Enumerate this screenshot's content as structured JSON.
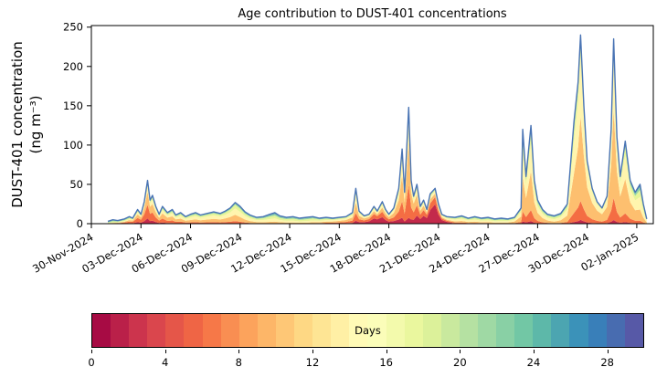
{
  "figure": {
    "title": "Age contribution to DUST-401 concentrations",
    "ylabel_line1": "DUST-401 concentration",
    "ylabel_line2": "(ng m⁻³)"
  },
  "chart_data": {
    "type": "area",
    "stacked": true,
    "title": "Age contribution to DUST-401 concentrations",
    "xlabel": "",
    "ylabel": "DUST-401 concentration (ng m⁻³)",
    "x_unit": "days since 30-Nov-2024",
    "xlim": [
      0,
      34
    ],
    "ylim": [
      0,
      252
    ],
    "grid": false,
    "line_color": "#4a74b4",
    "y_ticks": [
      0,
      50,
      100,
      150,
      200,
      250
    ],
    "x_ticks": [
      {
        "label": "30-Nov-2024",
        "day": 0
      },
      {
        "label": "03-Dec-2024",
        "day": 3
      },
      {
        "label": "06-Dec-2024",
        "day": 6
      },
      {
        "label": "09-Dec-2024",
        "day": 9
      },
      {
        "label": "12-Dec-2024",
        "day": 12
      },
      {
        "label": "15-Dec-2024",
        "day": 15
      },
      {
        "label": "18-Dec-2024",
        "day": 18
      },
      {
        "label": "21-Dec-2024",
        "day": 21
      },
      {
        "label": "24-Dec-2024",
        "day": 24
      },
      {
        "label": "27-Dec-2024",
        "day": 27
      },
      {
        "label": "30-Dec-2024",
        "day": 30
      },
      {
        "label": "02-Jan-2025",
        "day": 33
      }
    ],
    "colormap": [
      "#9e0142",
      "#d53e4f",
      "#f46d43",
      "#fdae61",
      "#fee08b",
      "#ffffbf",
      "#e6f598",
      "#abdda4",
      "#66c2a5",
      "#3288bd",
      "#5e4fa2"
    ],
    "age_bands": [
      {
        "label": "0-4 days",
        "range": [
          0,
          4
        ]
      },
      {
        "label": "4-8 days",
        "range": [
          4,
          8
        ]
      },
      {
        "label": "8-12 days",
        "range": [
          8,
          12
        ]
      },
      {
        "label": "12-16 days",
        "range": [
          12,
          16
        ]
      },
      {
        "label": "16-20 days",
        "range": [
          16,
          20
        ]
      },
      {
        "label": "20-24 days",
        "range": [
          20,
          24
        ]
      },
      {
        "label": "24-29 days",
        "range": [
          24,
          29
        ]
      }
    ],
    "x": [
      1.0,
      1.3,
      1.6,
      2.0,
      2.3,
      2.5,
      2.8,
      3.0,
      3.2,
      3.4,
      3.55,
      3.7,
      3.9,
      4.1,
      4.3,
      4.6,
      4.9,
      5.1,
      5.4,
      5.7,
      6.0,
      6.3,
      6.6,
      7.0,
      7.4,
      7.8,
      8.1,
      8.4,
      8.7,
      9.0,
      9.3,
      9.6,
      10.0,
      10.4,
      10.8,
      11.1,
      11.4,
      11.8,
      12.2,
      12.6,
      13.0,
      13.4,
      13.8,
      14.2,
      14.6,
      15.0,
      15.4,
      15.8,
      16.0,
      16.2,
      16.5,
      16.8,
      17.1,
      17.3,
      17.6,
      17.8,
      18.0,
      18.3,
      18.6,
      18.8,
      18.95,
      19.2,
      19.35,
      19.5,
      19.7,
      19.9,
      20.1,
      20.3,
      20.5,
      20.8,
      21.0,
      21.2,
      21.5,
      22.0,
      22.4,
      22.8,
      23.2,
      23.6,
      24.0,
      24.4,
      24.8,
      25.2,
      25.6,
      26.0,
      26.1,
      26.3,
      26.6,
      26.8,
      27.0,
      27.3,
      27.6,
      28.0,
      28.4,
      28.8,
      29.2,
      29.45,
      29.6,
      29.8,
      30.0,
      30.3,
      30.6,
      30.9,
      31.2,
      31.45,
      31.6,
      31.8,
      32.0,
      32.3,
      32.6,
      32.9,
      33.2,
      33.4,
      33.6
    ],
    "total": [
      3,
      5,
      4,
      6,
      9,
      7,
      18,
      12,
      28,
      55,
      30,
      36,
      22,
      12,
      22,
      14,
      18,
      11,
      14,
      9,
      12,
      14,
      11,
      13,
      15,
      13,
      16,
      20,
      27,
      22,
      15,
      11,
      8,
      9,
      12,
      14,
      10,
      8,
      9,
      7,
      8,
      9,
      7,
      8,
      7,
      8,
      9,
      14,
      45,
      16,
      10,
      12,
      22,
      16,
      28,
      18,
      12,
      20,
      45,
      95,
      40,
      148,
      55,
      35,
      50,
      22,
      30,
      18,
      38,
      45,
      25,
      12,
      9,
      8,
      10,
      7,
      9,
      7,
      8,
      6,
      7,
      6,
      8,
      20,
      120,
      60,
      125,
      55,
      30,
      18,
      12,
      10,
      13,
      25,
      130,
      180,
      240,
      150,
      80,
      45,
      28,
      20,
      35,
      120,
      235,
      110,
      60,
      105,
      55,
      40,
      50,
      25,
      6
    ],
    "fraction_keyframes": [
      {
        "x": 1.0,
        "f": [
          0.0,
          0.03,
          0.07,
          0.15,
          0.3,
          0.25,
          0.2
        ]
      },
      {
        "x": 2.8,
        "f": [
          0.1,
          0.3,
          0.25,
          0.15,
          0.1,
          0.06,
          0.04
        ]
      },
      {
        "x": 3.4,
        "f": [
          0.12,
          0.32,
          0.3,
          0.14,
          0.06,
          0.04,
          0.02
        ]
      },
      {
        "x": 4.6,
        "f": [
          0.05,
          0.2,
          0.3,
          0.2,
          0.12,
          0.08,
          0.05
        ]
      },
      {
        "x": 6.0,
        "f": [
          0.02,
          0.12,
          0.25,
          0.28,
          0.18,
          0.1,
          0.05
        ]
      },
      {
        "x": 8.7,
        "f": [
          0.02,
          0.1,
          0.3,
          0.3,
          0.17,
          0.07,
          0.04
        ]
      },
      {
        "x": 10.5,
        "f": [
          0.0,
          0.05,
          0.15,
          0.3,
          0.25,
          0.15,
          0.1
        ]
      },
      {
        "x": 13.0,
        "f": [
          0.0,
          0.03,
          0.12,
          0.25,
          0.3,
          0.18,
          0.12
        ]
      },
      {
        "x": 16.0,
        "f": [
          0.08,
          0.22,
          0.3,
          0.22,
          0.1,
          0.05,
          0.03
        ]
      },
      {
        "x": 17.3,
        "f": [
          0.35,
          0.25,
          0.15,
          0.12,
          0.07,
          0.04,
          0.02
        ]
      },
      {
        "x": 18.8,
        "f": [
          0.08,
          0.22,
          0.35,
          0.2,
          0.08,
          0.04,
          0.03
        ]
      },
      {
        "x": 19.2,
        "f": [
          0.05,
          0.28,
          0.38,
          0.18,
          0.06,
          0.03,
          0.02
        ]
      },
      {
        "x": 20.0,
        "f": [
          0.3,
          0.25,
          0.2,
          0.12,
          0.07,
          0.04,
          0.02
        ]
      },
      {
        "x": 20.8,
        "f": [
          0.55,
          0.2,
          0.1,
          0.07,
          0.04,
          0.02,
          0.02
        ]
      },
      {
        "x": 22.0,
        "f": [
          0.05,
          0.12,
          0.2,
          0.28,
          0.18,
          0.1,
          0.07
        ]
      },
      {
        "x": 25.0,
        "f": [
          0.0,
          0.04,
          0.14,
          0.28,
          0.26,
          0.16,
          0.12
        ]
      },
      {
        "x": 26.4,
        "f": [
          0.03,
          0.12,
          0.42,
          0.28,
          0.09,
          0.04,
          0.02
        ]
      },
      {
        "x": 28.0,
        "f": [
          0.0,
          0.06,
          0.2,
          0.3,
          0.24,
          0.12,
          0.08
        ]
      },
      {
        "x": 29.6,
        "f": [
          0.02,
          0.1,
          0.45,
          0.32,
          0.07,
          0.02,
          0.02
        ]
      },
      {
        "x": 31.6,
        "f": [
          0.02,
          0.12,
          0.48,
          0.27,
          0.07,
          0.02,
          0.02
        ]
      },
      {
        "x": 32.5,
        "f": [
          0.02,
          0.1,
          0.4,
          0.3,
          0.1,
          0.05,
          0.03
        ]
      },
      {
        "x": 33.6,
        "f": [
          0.0,
          0.05,
          0.22,
          0.33,
          0.22,
          0.11,
          0.07
        ]
      }
    ],
    "colorbar": {
      "label": "Days",
      "ticks": [
        0,
        4,
        8,
        12,
        16,
        20,
        24,
        28
      ],
      "max": 30,
      "bins": 30
    }
  }
}
